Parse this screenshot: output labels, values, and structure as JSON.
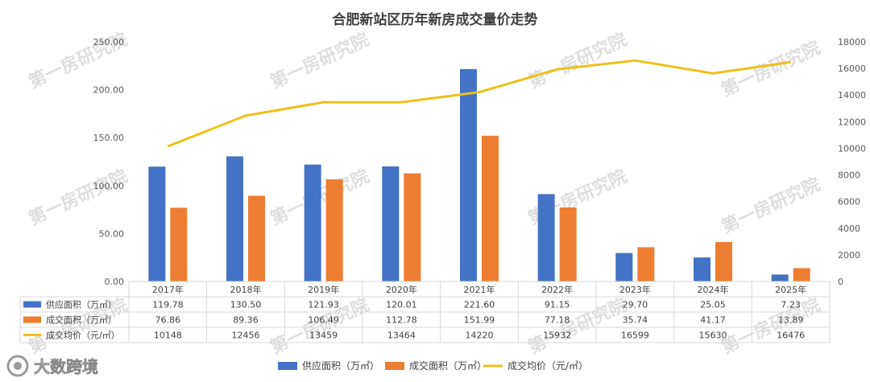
{
  "chart_data": {
    "type": "bar",
    "title": "合肥新站区历年新房成交量价走势",
    "categories": [
      "2017年",
      "2018年",
      "2019年",
      "2020年",
      "2021年",
      "2022年",
      "2023年",
      "2024年",
      "2025年"
    ],
    "series": [
      {
        "name": "供应面积（万㎡）",
        "kind": "bar",
        "axis": "left",
        "color": "#4472C4",
        "values": [
          119.78,
          130.5,
          121.93,
          120.01,
          221.6,
          91.15,
          29.7,
          25.05,
          7.23
        ],
        "labels": [
          "119.78",
          "130.50",
          "121.93",
          "120.01",
          "221.60",
          "91.15",
          "29.70",
          "25.05",
          "7.23"
        ]
      },
      {
        "name": "成交面积（万㎡）",
        "kind": "bar",
        "axis": "left",
        "color": "#ED7D31",
        "values": [
          76.86,
          89.36,
          106.49,
          112.78,
          151.99,
          77.18,
          35.74,
          41.17,
          13.89
        ],
        "labels": [
          "76.86",
          "89.36",
          "106.49",
          "112.78",
          "151.99",
          "77.18",
          "35.74",
          "41.17",
          "13.89"
        ]
      },
      {
        "name": "成交均价（元/㎡）",
        "kind": "line",
        "axis": "right",
        "color": "#F0BE1C",
        "values": [
          10148,
          12456,
          13459,
          13464,
          14220,
          15932,
          16599,
          15630,
          16476
        ],
        "labels": [
          "10148",
          "12456",
          "13459",
          "13464",
          "14220",
          "15932",
          "16599",
          "15630",
          "16476"
        ]
      }
    ],
    "y_left": {
      "ylim": [
        0,
        250
      ],
      "ticks": [
        "0.00",
        "50.00",
        "100.00",
        "150.00",
        "200.00",
        "250.00"
      ],
      "tick_values": [
        0,
        50,
        100,
        150,
        200,
        250
      ]
    },
    "y_right": {
      "ylim": [
        0,
        18000
      ],
      "ticks": [
        "0",
        "2000",
        "4000",
        "6000",
        "8000",
        "10000",
        "12000",
        "14000",
        "16000",
        "18000"
      ],
      "tick_values": [
        0,
        2000,
        4000,
        6000,
        8000,
        10000,
        12000,
        14000,
        16000,
        18000
      ]
    },
    "grid": false,
    "legend": "bottom",
    "data_table": true
  },
  "watermark": "第一房研究院",
  "logo": {
    "text": "大数跨境"
  }
}
